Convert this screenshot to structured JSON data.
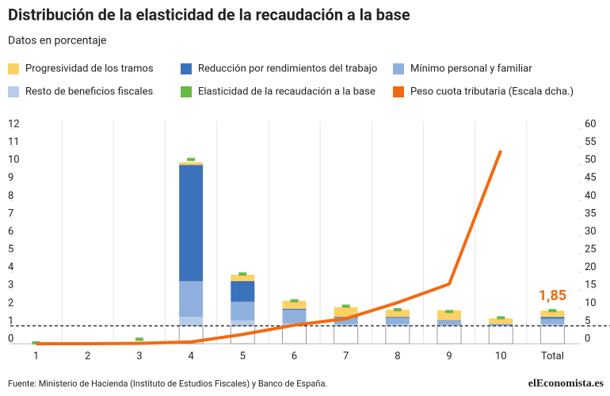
{
  "chart_data": {
    "type": "stacked-bar-line",
    "title": "Distribución de la elasticidad de la recaudación a la base",
    "subtitle": "Datos en porcentaje",
    "source": "Fuente: Ministerio de Hacienda (Instituto de Estudios Fiscales) y Banco de España.",
    "logo": "elEconomista.es",
    "categories": [
      "1",
      "2",
      "3",
      "4",
      "5",
      "6",
      "7",
      "8",
      "9",
      "10",
      "Total"
    ],
    "reference_line": 1,
    "ylim": [
      0,
      12
    ],
    "yticks": [
      0,
      1,
      2,
      3,
      4,
      5,
      6,
      7,
      8,
      9,
      10,
      11,
      12
    ],
    "y2lim": [
      0,
      60
    ],
    "y2ticks": [
      0,
      5,
      10,
      15,
      20,
      25,
      30,
      35,
      40,
      45,
      50,
      55,
      60
    ],
    "series": [
      {
        "name": "Progresividad de los tramos",
        "color": "#fdd164",
        "kind": "stack",
        "values": [
          null,
          null,
          null,
          0.15,
          0.35,
          0.45,
          0.55,
          0.4,
          0.55,
          0.3,
          0.35
        ]
      },
      {
        "name": "Reducción por rendimientos del trabajo",
        "color": "#3a72bb",
        "kind": "stack",
        "values": [
          null,
          null,
          null,
          6.5,
          1.15,
          0.05,
          0.05,
          0.05,
          0.02,
          null,
          0.1
        ]
      },
      {
        "name": "Mínimo personal y familiar",
        "color": "#8fb0dc",
        "kind": "stack",
        "values": [
          null,
          null,
          null,
          2.0,
          1.05,
          0.75,
          0.35,
          0.35,
          0.25,
          0.1,
          0.3
        ]
      },
      {
        "name": "Resto de beneficios fiscales",
        "color": "#b6cdea",
        "kind": "stack",
        "values": [
          null,
          null,
          null,
          0.5,
          0.3,
          0.15,
          0.1,
          0.1,
          0.05,
          0.02,
          0.1
        ]
      },
      {
        "name": "Elasticidad de la recaudación a la base",
        "color": "#6ab845",
        "kind": "marker",
        "values": [
          0.05,
          null,
          0.25,
          10.3,
          3.9,
          2.4,
          2.1,
          1.9,
          1.8,
          1.45,
          1.85
        ],
        "value_labels": [
          null,
          null,
          null,
          null,
          null,
          null,
          null,
          null,
          null,
          null,
          "1,85"
        ]
      },
      {
        "name": "Peso cuota tributaria (Escala dcha.)",
        "color": "#f26a10",
        "kind": "line",
        "axis": "y2",
        "values": [
          0,
          0,
          0.1,
          0.5,
          2.6,
          5.2,
          7,
          11.5,
          16.7,
          54,
          null
        ]
      }
    ]
  }
}
